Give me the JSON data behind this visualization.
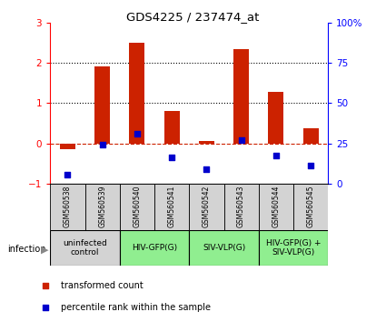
{
  "title": "GDS4225 / 237474_at",
  "samples": [
    "GSM560538",
    "GSM560539",
    "GSM560540",
    "GSM560541",
    "GSM560542",
    "GSM560543",
    "GSM560544",
    "GSM560545"
  ],
  "red_bars": [
    -0.15,
    1.9,
    2.5,
    0.8,
    0.05,
    2.35,
    1.28,
    0.38
  ],
  "blue_squares_left": [
    -0.78,
    -0.04,
    0.24,
    -0.36,
    -0.64,
    0.07,
    -0.3,
    -0.56
  ],
  "ylim_left": [
    -1,
    3
  ],
  "ylim_right": [
    0,
    100
  ],
  "yticks_left": [
    -1,
    0,
    1,
    2,
    3
  ],
  "yticks_right": [
    0,
    25,
    50,
    75,
    100
  ],
  "ytick_labels_right": [
    "0",
    "25",
    "50",
    "75",
    "100%"
  ],
  "groups": [
    {
      "label": "uninfected\ncontrol",
      "start": 0,
      "end": 2,
      "color": "#d3d3d3"
    },
    {
      "label": "HIV-GFP(G)",
      "start": 2,
      "end": 4,
      "color": "#90ee90"
    },
    {
      "label": "SIV-VLP(G)",
      "start": 4,
      "end": 6,
      "color": "#90ee90"
    },
    {
      "label": "HIV-GFP(G) +\nSIV-VLP(G)",
      "start": 6,
      "end": 8,
      "color": "#90ee90"
    }
  ],
  "bar_color": "#cc2200",
  "square_color": "#0000cc",
  "zero_line_color": "#cc2200",
  "dotted_line_color": "black",
  "legend_red_label": "transformed count",
  "legend_blue_label": "percentile rank within the sample",
  "infection_label": "infection"
}
